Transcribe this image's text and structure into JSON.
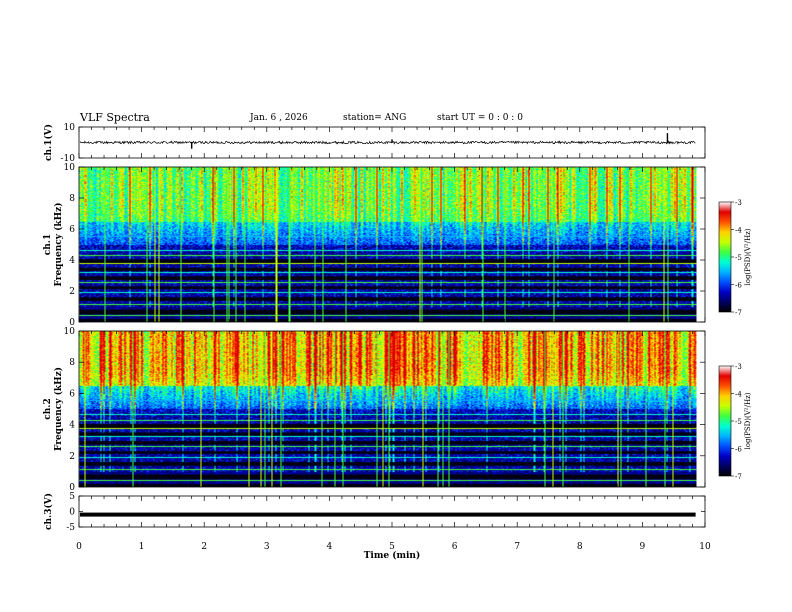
{
  "header": {
    "title": "VLF Spectra",
    "date": "Jan. 6 , 2026",
    "station": "station= ANG",
    "start_ut": "start UT =  0 : 0 : 0"
  },
  "colors": {
    "trace": "#000000",
    "frame": "#000000",
    "colormap": [
      "#000000",
      "#000060",
      "#0000c8",
      "#0050ff",
      "#00b4ff",
      "#00ffd0",
      "#40ff40",
      "#c8ff00",
      "#ffd000",
      "#ff5000",
      "#e00000",
      "#ffffff"
    ]
  },
  "chart_data": [
    {
      "name": "ch1-waveform",
      "type": "line",
      "ylabel": "ch.1(V)",
      "ylim": [
        -10,
        10
      ],
      "ytick_labels": [
        "10",
        "-10"
      ],
      "xlim": [
        0,
        10
      ],
      "baseline": 0,
      "spikes": [
        {
          "x": 1.8,
          "y": -4
        },
        {
          "x": 5.0,
          "y": 2
        },
        {
          "x": 9.4,
          "y": 6
        }
      ]
    },
    {
      "name": "ch1-spectrogram",
      "type": "heatmap",
      "ylabel": "ch.1",
      "ylabel2": "Frequency (kHz)",
      "ylim": [
        0,
        10
      ],
      "ytick_labels": [
        "0",
        "2",
        "4",
        "6",
        "8",
        "10"
      ],
      "xlim": [
        0,
        10
      ],
      "data_end_min": 9.85,
      "colorbar": {
        "label": "log(PSD)(V²/Hz)",
        "range": [
          -7,
          -3
        ],
        "tick_labels": [
          "-7",
          "-6",
          "-5",
          "-4",
          "-3"
        ]
      }
    },
    {
      "name": "ch2-spectrogram",
      "type": "heatmap",
      "ylabel": "ch.2",
      "ylabel2": "Frequency (kHz)",
      "ylim": [
        0,
        10
      ],
      "ytick_labels": [
        "0",
        "2",
        "4",
        "6",
        "8",
        "10"
      ],
      "xlim": [
        0,
        10
      ],
      "data_end_min": 9.85,
      "colorbar": {
        "label": "log(PSD)(V²/Hz)",
        "range": [
          -7,
          -3
        ],
        "tick_labels": [
          "-7",
          "-6",
          "-5",
          "-4",
          "-3"
        ]
      }
    },
    {
      "name": "ch3-waveform",
      "type": "line",
      "ylabel": "ch.3(V)",
      "ylim": [
        -5,
        5
      ],
      "ytick_labels": [
        "5",
        "0",
        "-5"
      ],
      "xlim": [
        0,
        10
      ],
      "baseline": -1,
      "xlabel": "Time (min)",
      "xtick_labels": [
        "0",
        "1",
        "2",
        "3",
        "4",
        "5",
        "6",
        "7",
        "8",
        "9",
        "10"
      ]
    }
  ]
}
